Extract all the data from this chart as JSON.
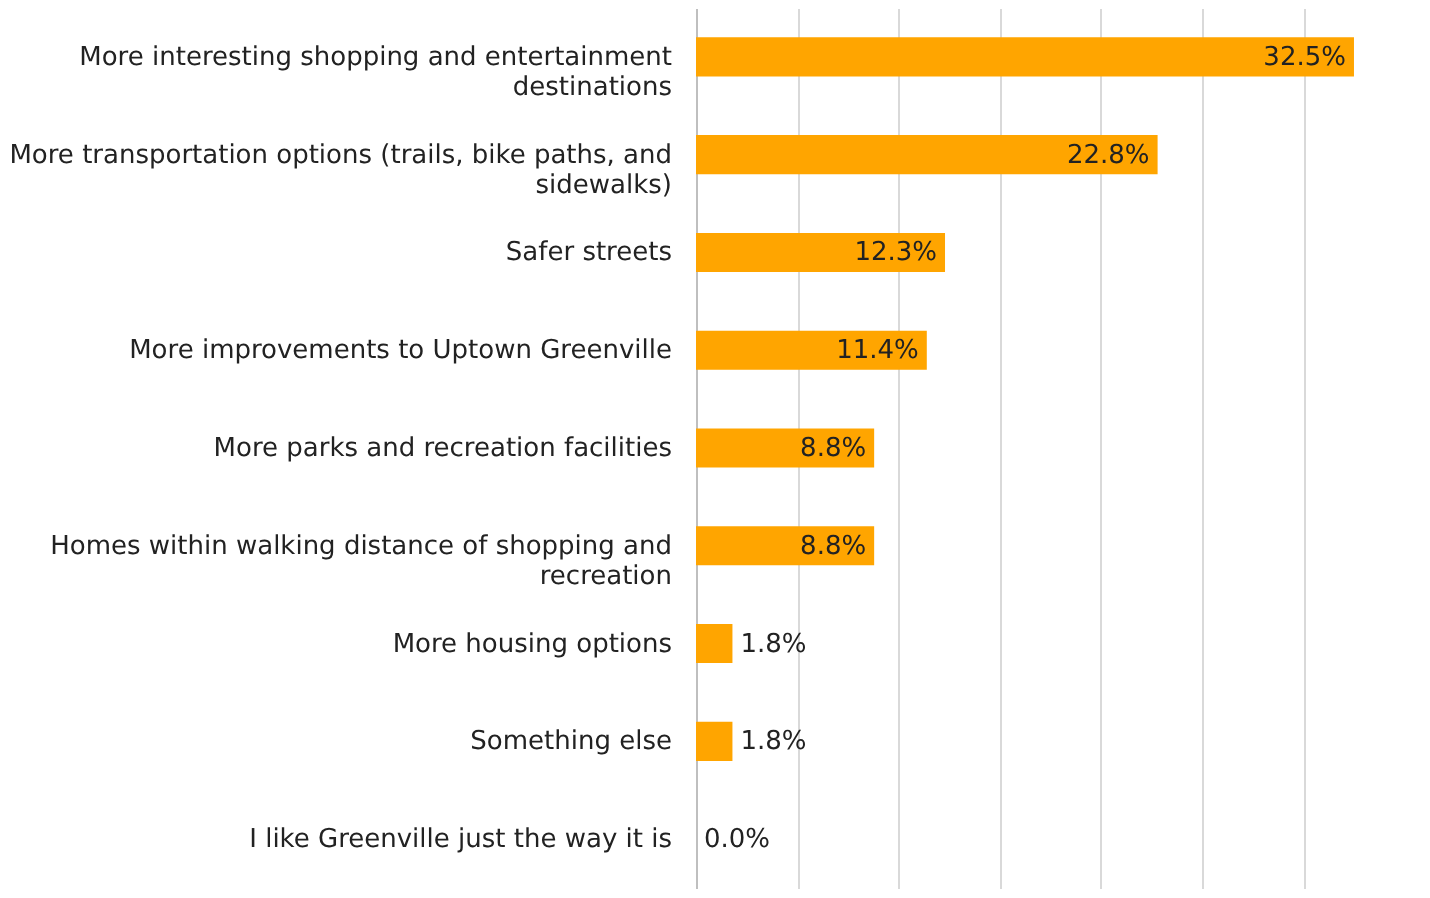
{
  "chart_data": {
    "type": "bar",
    "orientation": "horizontal",
    "categories": [
      "More interesting shopping and entertainment destinations",
      "More transportation options (trails, bike paths, and sidewalks)",
      "Safer streets",
      "More improvements to Uptown Greenville",
      "More parks and recreation facilities",
      "Homes within walking distance of shopping and recreation",
      "More housing options",
      "Something else",
      "I like Greenville just the way it is"
    ],
    "values": [
      32.5,
      22.8,
      12.3,
      11.4,
      8.8,
      8.8,
      1.8,
      1.8,
      0.0
    ],
    "value_labels": [
      "32.5%",
      "22.8%",
      "12.3%",
      "11.4%",
      "8.8%",
      "8.8%",
      "1.8%",
      "1.8%",
      "0.0%"
    ],
    "color": "#ffa500",
    "xlim": [
      0,
      32.6
    ],
    "xticks": [
      {
        "value": 0,
        "label": null
      },
      {
        "value": 5,
        "label": null
      },
      {
        "value": 10,
        "label": null
      },
      {
        "value": 15,
        "label": null
      },
      {
        "value": 20,
        "label": null
      },
      {
        "value": 25,
        "label": null
      },
      {
        "value": 30,
        "label": null
      }
    ],
    "grid": "x",
    "tick_labels": "y"
  }
}
